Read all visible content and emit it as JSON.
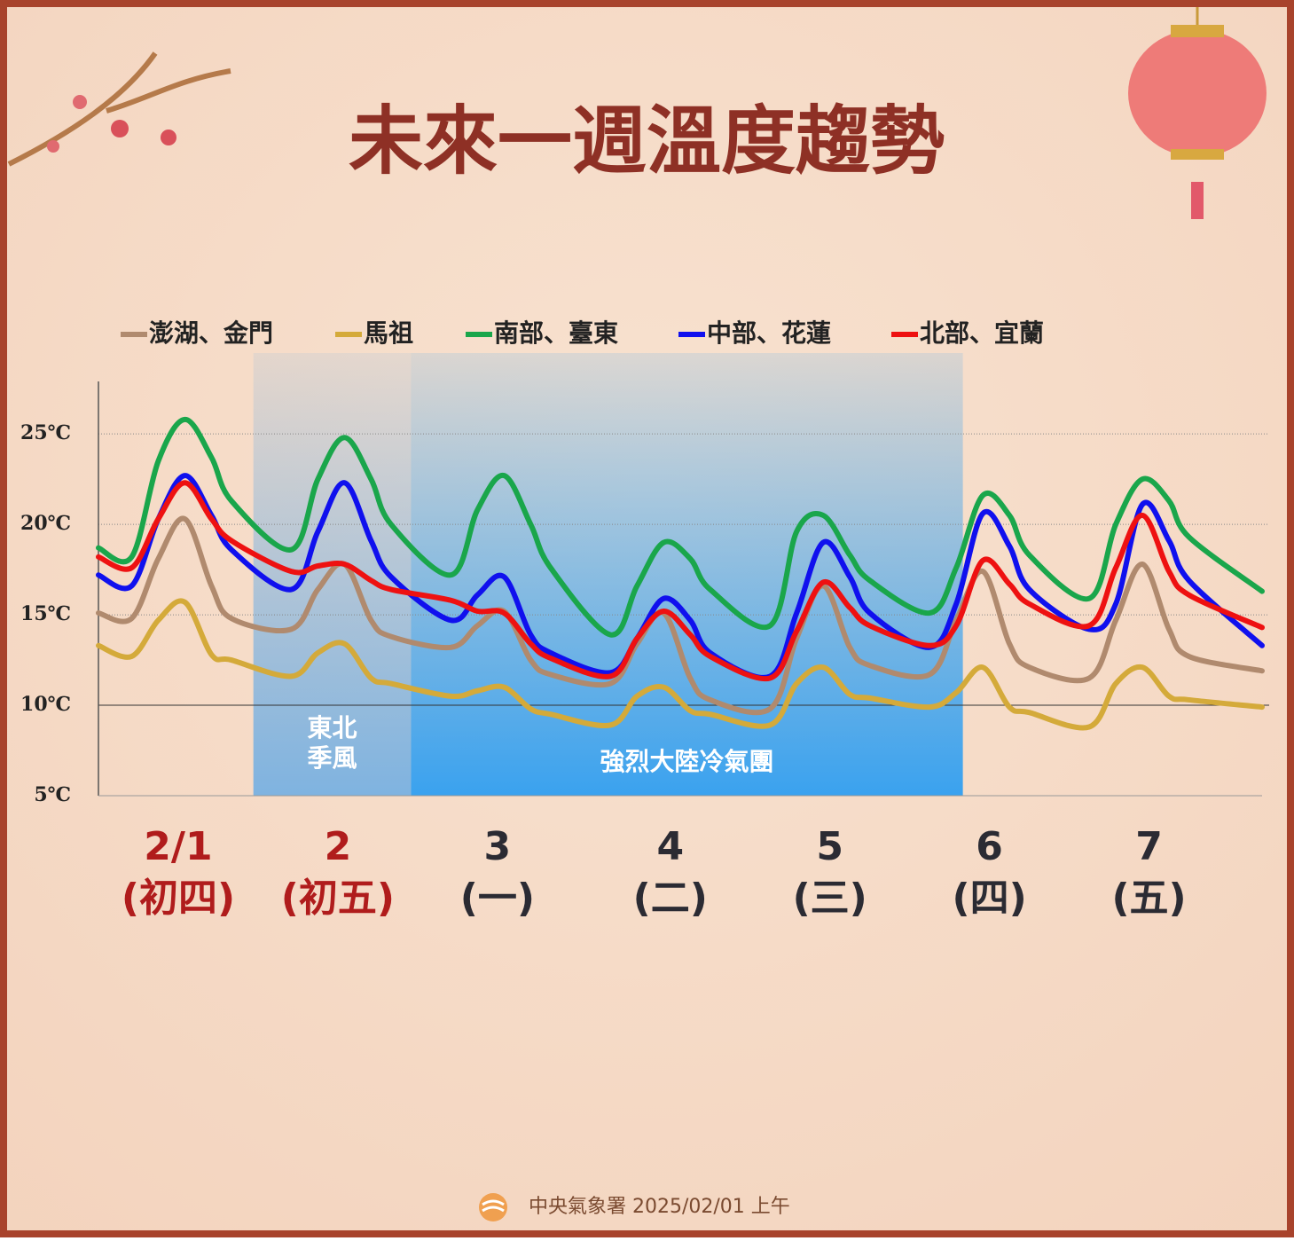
{
  "chart_data": {
    "type": "line",
    "title": "未來一週溫度趨勢",
    "footer": "中央氣象署  2025/02/01 上午",
    "legend": "top",
    "grid": true,
    "ylim": [
      5,
      28
    ],
    "yticks": [
      {
        "value": 5,
        "label": "5℃"
      },
      {
        "value": 10,
        "label": "10℃"
      },
      {
        "value": 15,
        "label": "15℃"
      },
      {
        "value": 20,
        "label": "20℃"
      },
      {
        "value": 25,
        "label": "25℃"
      }
    ],
    "reference_line": 10,
    "xlim": [
      0,
      175
    ],
    "xticks": [
      {
        "value": 12,
        "label": "2/1",
        "sublabel": "(初四)",
        "color": "#b01c1c"
      },
      {
        "value": 36,
        "label": "2",
        "sublabel": "(初五)",
        "color": "#b01c1c"
      },
      {
        "value": 60,
        "label": "3",
        "sublabel": "(一)",
        "color": "#2b2b33"
      },
      {
        "value": 86,
        "label": "4",
        "sublabel": "(二)",
        "color": "#2b2b33"
      },
      {
        "value": 110,
        "label": "5",
        "sublabel": "(三)",
        "color": "#2b2b33"
      },
      {
        "value": 134,
        "label": "6",
        "sublabel": "(四)",
        "color": "#2b2b33"
      },
      {
        "value": 158,
        "label": "7",
        "sublabel": "(五)",
        "color": "#2b2b33"
      }
    ],
    "bands": [
      {
        "start": 23.3,
        "end": 47,
        "lines": [
          "東北",
          "季風"
        ],
        "color": "#7fb3e0"
      },
      {
        "start": 47,
        "end": 130,
        "lines": [
          "強烈大陸冷氣團"
        ],
        "color": "#3aa2ef"
      }
    ],
    "x": [
      0,
      5,
      9,
      13,
      17,
      20,
      29,
      33,
      37,
      41,
      44,
      53,
      57,
      61,
      65,
      68,
      77,
      81,
      85,
      89,
      92,
      101,
      105,
      109,
      113,
      116,
      125,
      129,
      133,
      137,
      140,
      149,
      153,
      157,
      161,
      164,
      175
    ],
    "series": [
      {
        "name": "澎湖、金門",
        "color": "#b08a6e",
        "values": [
          15.1,
          14.8,
          18.1,
          20.3,
          16.6,
          14.8,
          14.2,
          16.4,
          17.8,
          14.7,
          13.8,
          13.2,
          14.4,
          15.2,
          12.5,
          11.7,
          11.2,
          13.4,
          15.1,
          11.5,
          10.3,
          9.8,
          13.7,
          16.6,
          13.2,
          12.2,
          11.7,
          14.7,
          17.4,
          13.4,
          12.1,
          11.5,
          14.7,
          17.8,
          14.2,
          12.7,
          11.9
        ]
      },
      {
        "name": "馬祖",
        "color": "#d4aa3a",
        "values": [
          13.3,
          12.7,
          14.7,
          15.7,
          12.8,
          12.5,
          11.6,
          12.9,
          13.4,
          11.5,
          11.2,
          10.5,
          10.8,
          11.0,
          9.8,
          9.5,
          8.9,
          10.5,
          11.0,
          9.7,
          9.5,
          8.9,
          11.2,
          12.1,
          10.6,
          10.4,
          9.9,
          10.7,
          12.1,
          9.9,
          9.6,
          8.8,
          11.2,
          12.1,
          10.5,
          10.3,
          9.9
        ]
      },
      {
        "name": "南部、臺東",
        "color": "#1aa64b",
        "values": [
          18.7,
          18.2,
          23.5,
          25.8,
          23.7,
          21.3,
          18.6,
          22.5,
          24.8,
          22.5,
          20.0,
          17.2,
          20.8,
          22.7,
          20.0,
          17.6,
          13.9,
          16.6,
          19.0,
          18.1,
          16.4,
          14.4,
          19.6,
          20.5,
          18.3,
          16.9,
          15.1,
          17.6,
          21.6,
          20.5,
          18.3,
          15.9,
          20.0,
          22.5,
          21.3,
          19.3,
          16.3
        ]
      },
      {
        "name": "中部、花蓮",
        "color": "#1010ee",
        "values": [
          17.2,
          16.6,
          20.3,
          22.7,
          20.5,
          18.6,
          16.4,
          19.6,
          22.3,
          19.1,
          17.1,
          14.7,
          16.1,
          17.1,
          13.9,
          12.9,
          11.8,
          13.7,
          15.9,
          14.7,
          12.9,
          11.6,
          15.1,
          19.0,
          17.1,
          15.1,
          13.2,
          15.6,
          20.6,
          18.8,
          16.4,
          14.2,
          15.6,
          21.1,
          19.1,
          16.9,
          13.3
        ]
      },
      {
        "name": "北部、宜蘭",
        "color": "#ee1111",
        "values": [
          18.2,
          17.6,
          20.3,
          22.3,
          20.3,
          19.1,
          17.4,
          17.7,
          17.8,
          16.9,
          16.4,
          15.8,
          15.2,
          15.1,
          13.4,
          12.6,
          11.6,
          13.7,
          15.2,
          13.9,
          12.7,
          11.5,
          14.1,
          16.8,
          15.4,
          14.4,
          13.3,
          14.4,
          18.0,
          16.7,
          15.6,
          14.4,
          17.6,
          20.5,
          17.4,
          16.1,
          14.3
        ]
      }
    ]
  }
}
